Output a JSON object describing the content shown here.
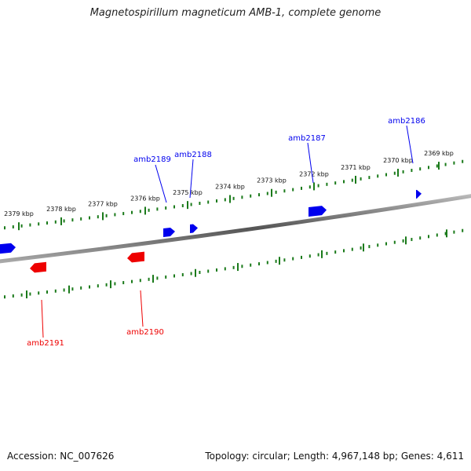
{
  "title": "Magnetospirillum magneticum AMB-1, complete genome",
  "footer": {
    "accession": "Accession: NC_007626",
    "summary": "Topology: circular; Length: 4,967,148 bp; Genes: 4,611"
  },
  "colors": {
    "forward_strand": "#0000ee",
    "reverse_strand": "#ee0000",
    "backbone": "#777777",
    "ticks": "#1a7a1a"
  },
  "tick_labels": [
    "2379 kbp",
    "2378 kbp",
    "2377 kbp",
    "2376 kbp",
    "2375 kbp",
    "2374 kbp",
    "2373 kbp",
    "2372 kbp",
    "2371 kbp",
    "2370 kbp",
    "2369 kbp"
  ],
  "genes_forward": [
    "amb2189",
    "amb2188",
    "amb2187",
    "amb2186"
  ],
  "genes_reverse": [
    "amb2191",
    "amb2190"
  ]
}
